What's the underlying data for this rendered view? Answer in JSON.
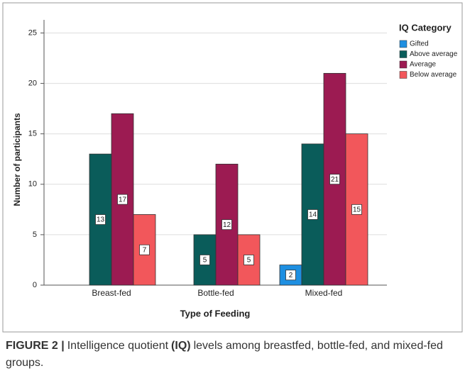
{
  "chart_data": {
    "type": "bar",
    "categories": [
      "Breast-fed",
      "Bottle-fed",
      "Mixed-fed"
    ],
    "series": [
      {
        "name": "Gifted",
        "color": "#1e8fe1",
        "values": [
          null,
          null,
          2
        ]
      },
      {
        "name": "Above average",
        "color": "#0a5c5a",
        "values": [
          13,
          5,
          14
        ]
      },
      {
        "name": "Average",
        "color": "#9c1b52",
        "values": [
          17,
          12,
          21
        ]
      },
      {
        "name": "Below average",
        "color": "#f2575b",
        "values": [
          7,
          5,
          15
        ]
      }
    ],
    "xlabel": "Type of Feeding",
    "ylabel": "Number of participants",
    "legend_title": "IQ Category",
    "legend": "right",
    "ylim": [
      0,
      26.3
    ],
    "yticks": [
      0,
      5,
      10,
      15,
      20,
      25
    ],
    "grid": true
  },
  "caption": {
    "label": "FIGURE 2 |",
    "text1": "Intelligence quotient",
    "bold": "(IQ)",
    "text2": "levels among breastfed, bottle-fed, and mixed-fed groups."
  }
}
